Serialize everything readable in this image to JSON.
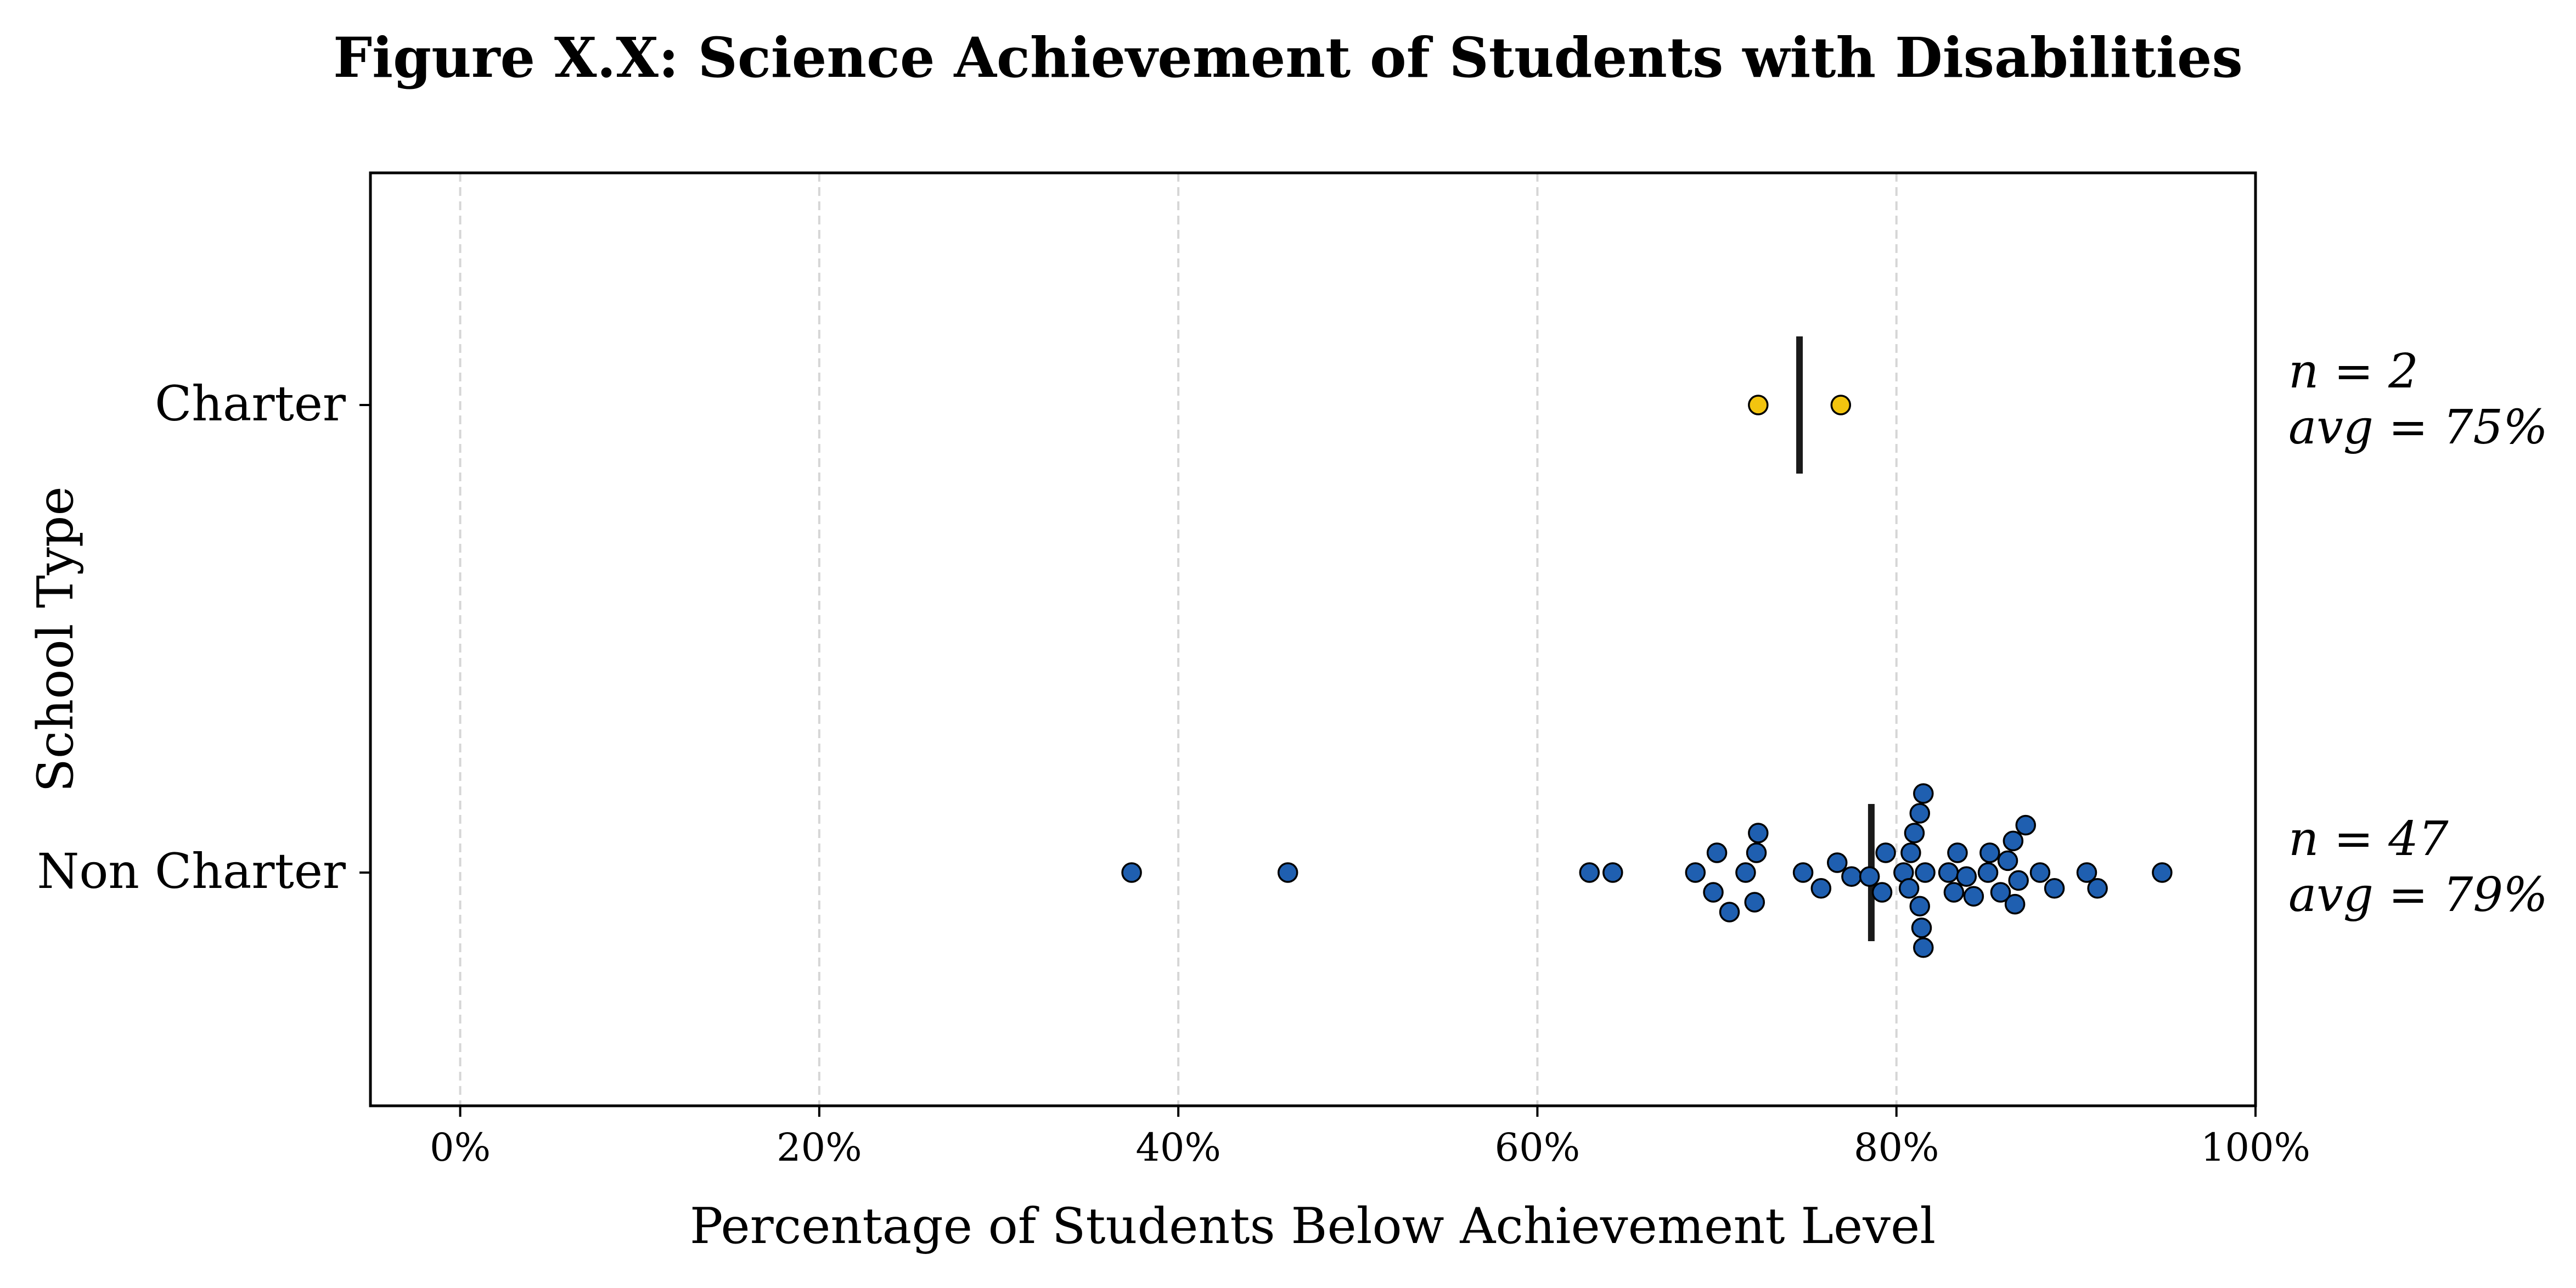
{
  "chart_data": {
    "type": "scatter",
    "title": "Figure X.X: Science Achievement of Students with Disabilities",
    "xlabel": "Percentage of Students Below Achievement Level",
    "ylabel": "School Type",
    "xlim": [
      -5,
      100
    ],
    "x_ticks": [
      {
        "value": 0,
        "label": "0%"
      },
      {
        "value": 20,
        "label": "20%"
      },
      {
        "value": 40,
        "label": "40%"
      },
      {
        "value": 60,
        "label": "60%"
      },
      {
        "value": 80,
        "label": "80%"
      },
      {
        "value": 100,
        "label": "100%"
      }
    ],
    "grid": "x-dashed",
    "series": [
      {
        "category": "Charter",
        "color": "#f2c40f",
        "n_label": "n = 2",
        "avg_label": "avg = 75%",
        "mean": 74.6,
        "points": [
          [
            72.3,
            0
          ],
          [
            76.9,
            0
          ]
        ]
      },
      {
        "category": "Non Charter",
        "color": "#1f5fb0",
        "n_label": "n = 47",
        "avg_label": "avg = 79%",
        "mean": 78.6,
        "points": [
          [
            37.4,
            0
          ],
          [
            46.1,
            0
          ],
          [
            62.9,
            0
          ],
          [
            64.2,
            0
          ],
          [
            68.8,
            0
          ],
          [
            70.0,
            1
          ],
          [
            69.8,
            -1
          ],
          [
            70.7,
            -2
          ],
          [
            71.6,
            0
          ],
          [
            72.2,
            1
          ],
          [
            72.3,
            2
          ],
          [
            72.1,
            -1.5
          ],
          [
            74.8,
            0
          ],
          [
            75.8,
            -0.8
          ],
          [
            76.7,
            0.5
          ],
          [
            77.5,
            -0.2
          ],
          [
            78.5,
            -0.2
          ],
          [
            79.4,
            1
          ],
          [
            79.2,
            -1
          ],
          [
            80.4,
            0
          ],
          [
            80.8,
            1
          ],
          [
            80.7,
            -0.8
          ],
          [
            81.0,
            2
          ],
          [
            81.3,
            3
          ],
          [
            81.5,
            4
          ],
          [
            81.3,
            -1.7
          ],
          [
            81.4,
            -2.8
          ],
          [
            81.5,
            -3.8
          ],
          [
            81.6,
            0
          ],
          [
            82.9,
            0
          ],
          [
            83.2,
            -1
          ],
          [
            83.4,
            1
          ],
          [
            83.9,
            -0.2
          ],
          [
            84.3,
            -1.2
          ],
          [
            85.1,
            0
          ],
          [
            85.2,
            1
          ],
          [
            85.8,
            -1
          ],
          [
            86.2,
            0.6
          ],
          [
            86.5,
            1.6
          ],
          [
            86.8,
            -0.4
          ],
          [
            86.6,
            -1.6
          ],
          [
            87.2,
            2.4
          ],
          [
            88.0,
            0
          ],
          [
            88.8,
            -0.8
          ],
          [
            90.6,
            0
          ],
          [
            91.2,
            -0.8
          ],
          [
            94.8,
            0
          ]
        ]
      }
    ]
  }
}
